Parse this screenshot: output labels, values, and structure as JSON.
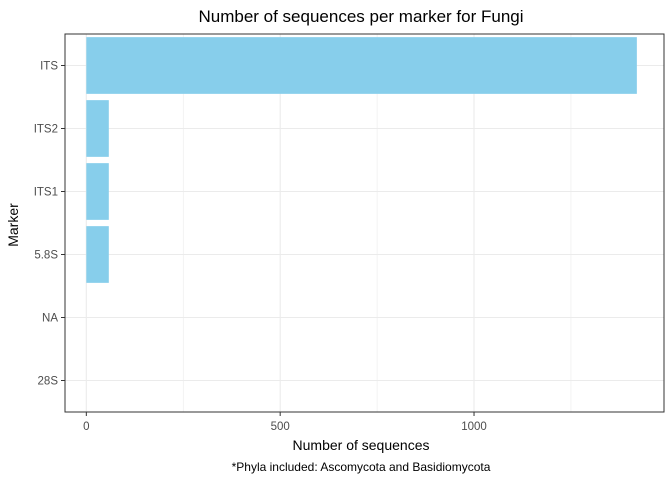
{
  "chart_data": {
    "type": "bar",
    "orientation": "horizontal",
    "title": "Number of sequences per marker for Fungi",
    "xlabel": "Number of sequences",
    "ylabel": "Marker",
    "caption": "*Phyla included: Ascomycota and Basidiomycota",
    "categories": [
      "ITS",
      "ITS2",
      "ITS1",
      "5.8S",
      "NA",
      "28S"
    ],
    "values": [
      1420,
      58,
      58,
      58,
      0,
      0
    ],
    "xlim": [
      -55,
      1490
    ],
    "xticks": [
      0,
      500,
      1000
    ],
    "grid": true,
    "bar_color": "#87CEEB",
    "grid_color": "#ebebeb",
    "panel_border_color": "#333333"
  }
}
